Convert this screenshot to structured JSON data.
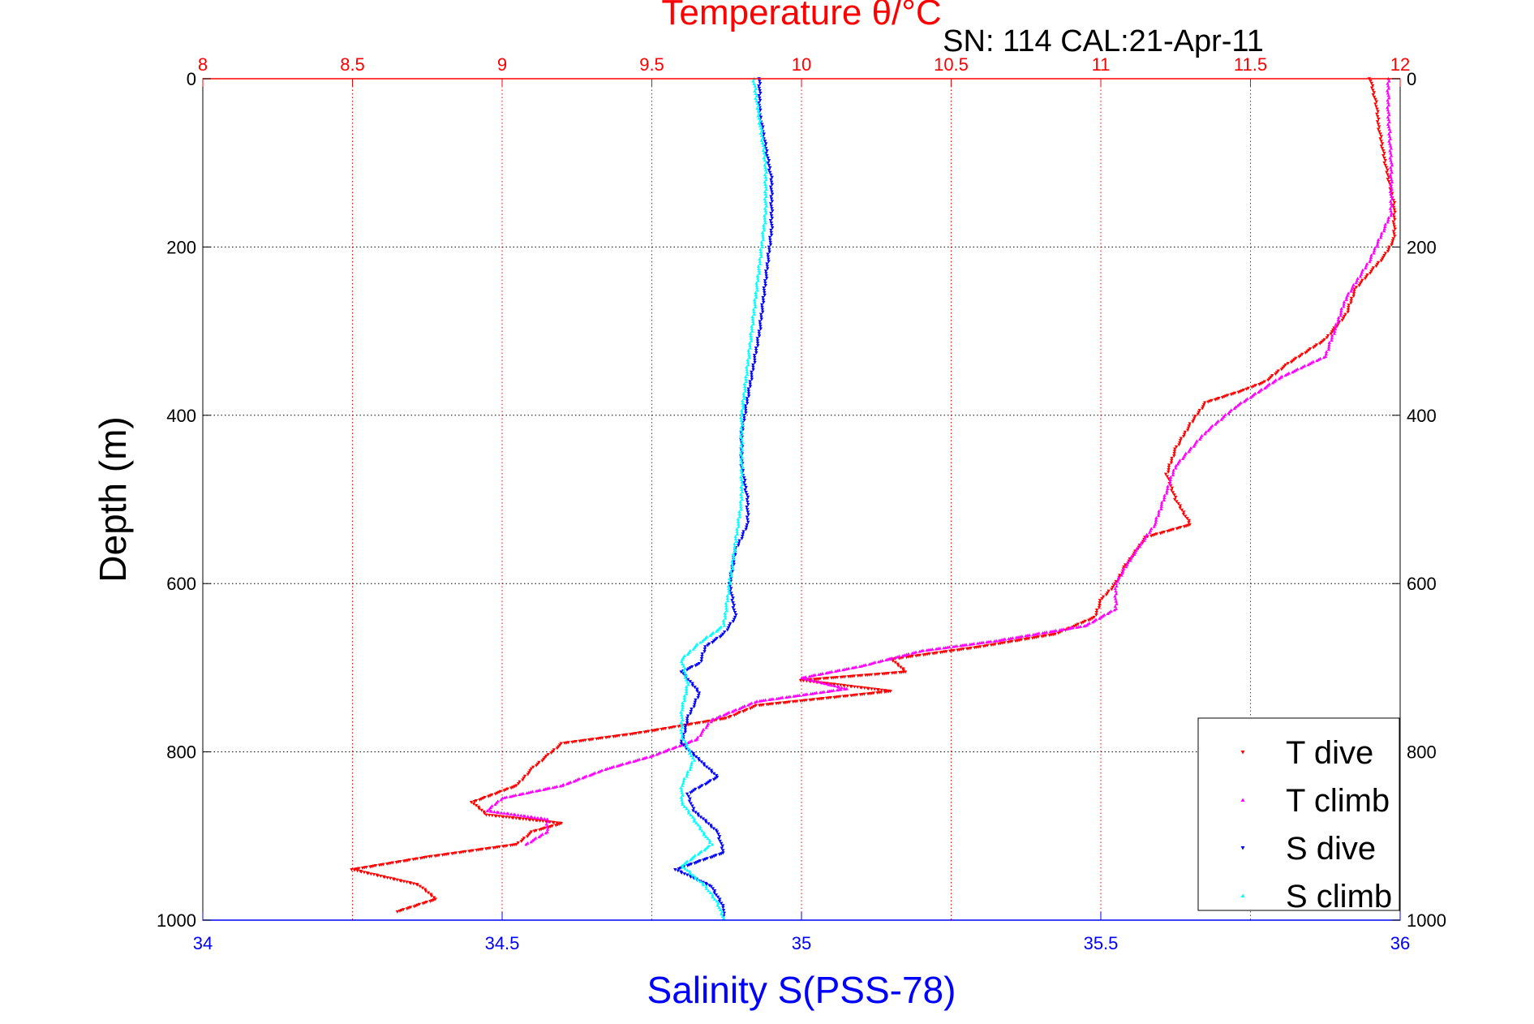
{
  "chart_data": {
    "type": "scatter",
    "title": "Temperature θ/°C",
    "subtitle": "SN: 114  CAL:21-Apr-11",
    "ylabel": "Depth (m)",
    "xlabel": "Salinity S(PSS-78)",
    "y_axis": {
      "lim": [
        0,
        1000
      ],
      "reversed": true,
      "ticks": [
        0,
        200,
        400,
        600,
        800,
        1000
      ],
      "labels_both_sides": true
    },
    "x_bottom": {
      "lim": [
        34,
        36
      ],
      "ticks": [
        34,
        34.5,
        35,
        35.5,
        36
      ],
      "tick_labels": [
        "34",
        "34.5",
        "35",
        "35.5",
        "36"
      ],
      "color": "#0000ff",
      "title_color": "#0000ff"
    },
    "x_top": {
      "lim": [
        8,
        12
      ],
      "ticks": [
        8,
        8.5,
        9,
        9.5,
        10,
        10.5,
        11,
        11.5,
        12
      ],
      "tick_labels": [
        "8",
        "8.5",
        "9",
        "9.5",
        "10",
        "10.5",
        "11",
        "11.5",
        "12"
      ],
      "color": "#ff0000",
      "title_color": "#ff0000"
    },
    "grid": {
      "vertical": "top-axis",
      "vertical_color": "#ff0000",
      "horizontal_color": "#000000",
      "style": "dotted"
    },
    "legend": {
      "placement": "bottom-right",
      "entries": [
        "T dive",
        "T climb",
        "S dive",
        "S climb"
      ]
    },
    "series": [
      {
        "name": "T dive",
        "axis": "top",
        "marker": "triangle-down",
        "color": "#ff0000",
        "points": [
          [
            11.9,
            0
          ],
          [
            11.92,
            30
          ],
          [
            11.93,
            60
          ],
          [
            11.95,
            100
          ],
          [
            11.98,
            150
          ],
          [
            11.98,
            190
          ],
          [
            11.95,
            210
          ],
          [
            11.85,
            250
          ],
          [
            11.82,
            280
          ],
          [
            11.75,
            310
          ],
          [
            11.62,
            340
          ],
          [
            11.55,
            360
          ],
          [
            11.48,
            370
          ],
          [
            11.35,
            385
          ],
          [
            11.3,
            410
          ],
          [
            11.25,
            440
          ],
          [
            11.22,
            470
          ],
          [
            11.25,
            500
          ],
          [
            11.3,
            530
          ],
          [
            11.15,
            545
          ],
          [
            11.08,
            580
          ],
          [
            11.05,
            600
          ],
          [
            11.0,
            620
          ],
          [
            10.98,
            640
          ],
          [
            10.85,
            660
          ],
          [
            10.6,
            675
          ],
          [
            10.3,
            690
          ],
          [
            10.35,
            705
          ],
          [
            10.0,
            715
          ],
          [
            10.3,
            728
          ],
          [
            9.85,
            745
          ],
          [
            9.75,
            760
          ],
          [
            9.45,
            778
          ],
          [
            9.2,
            790
          ],
          [
            9.15,
            805
          ],
          [
            9.1,
            820
          ],
          [
            9.05,
            840
          ],
          [
            8.9,
            860
          ],
          [
            8.95,
            875
          ],
          [
            9.2,
            885
          ],
          [
            9.1,
            895
          ],
          [
            9.05,
            910
          ],
          [
            8.75,
            925
          ],
          [
            8.5,
            940
          ],
          [
            8.72,
            958
          ],
          [
            8.78,
            975
          ],
          [
            8.65,
            990
          ]
        ]
      },
      {
        "name": "T climb",
        "axis": "top",
        "marker": "triangle-up",
        "color": "#ff00ff",
        "points": [
          [
            11.96,
            0
          ],
          [
            11.96,
            40
          ],
          [
            11.97,
            100
          ],
          [
            11.97,
            160
          ],
          [
            11.9,
            215
          ],
          [
            11.82,
            260
          ],
          [
            11.78,
            300
          ],
          [
            11.75,
            330
          ],
          [
            11.6,
            355
          ],
          [
            11.45,
            390
          ],
          [
            11.35,
            420
          ],
          [
            11.25,
            460
          ],
          [
            11.22,
            490
          ],
          [
            11.18,
            530
          ],
          [
            11.1,
            570
          ],
          [
            11.05,
            600
          ],
          [
            11.05,
            630
          ],
          [
            10.95,
            650
          ],
          [
            10.65,
            668
          ],
          [
            10.4,
            680
          ],
          [
            10.2,
            698
          ],
          [
            10.0,
            712
          ],
          [
            10.15,
            725
          ],
          [
            9.85,
            740
          ],
          [
            9.7,
            762
          ],
          [
            9.65,
            785
          ],
          [
            9.5,
            805
          ],
          [
            9.35,
            820
          ],
          [
            9.2,
            840
          ],
          [
            9.0,
            855
          ],
          [
            8.95,
            870
          ],
          [
            9.15,
            880
          ],
          [
            9.15,
            895
          ],
          [
            9.08,
            910
          ]
        ]
      },
      {
        "name": "S dive",
        "axis": "bottom",
        "marker": "triangle-down",
        "color": "#0000ff",
        "points": [
          [
            34.93,
            0
          ],
          [
            34.93,
            40
          ],
          [
            34.94,
            80
          ],
          [
            34.95,
            120
          ],
          [
            34.95,
            180
          ],
          [
            34.94,
            240
          ],
          [
            34.93,
            300
          ],
          [
            34.92,
            340
          ],
          [
            34.91,
            380
          ],
          [
            34.9,
            420
          ],
          [
            34.9,
            460
          ],
          [
            34.91,
            500
          ],
          [
            34.91,
            530
          ],
          [
            34.89,
            560
          ],
          [
            34.88,
            600
          ],
          [
            34.89,
            640
          ],
          [
            34.87,
            660
          ],
          [
            34.84,
            675
          ],
          [
            34.83,
            695
          ],
          [
            34.8,
            705
          ],
          [
            34.83,
            730
          ],
          [
            34.81,
            760
          ],
          [
            34.8,
            790
          ],
          [
            34.83,
            810
          ],
          [
            34.86,
            830
          ],
          [
            34.81,
            850
          ],
          [
            34.82,
            870
          ],
          [
            34.86,
            895
          ],
          [
            34.87,
            920
          ],
          [
            34.79,
            940
          ],
          [
            34.85,
            960
          ],
          [
            34.87,
            985
          ],
          [
            34.87,
            995
          ]
        ]
      },
      {
        "name": "S climb",
        "axis": "bottom",
        "marker": "triangle-up",
        "color": "#00ffff",
        "points": [
          [
            34.92,
            0
          ],
          [
            34.93,
            50
          ],
          [
            34.94,
            100
          ],
          [
            34.94,
            160
          ],
          [
            34.93,
            220
          ],
          [
            34.92,
            280
          ],
          [
            34.91,
            340
          ],
          [
            34.9,
            400
          ],
          [
            34.9,
            450
          ],
          [
            34.9,
            500
          ],
          [
            34.89,
            550
          ],
          [
            34.88,
            600
          ],
          [
            34.87,
            650
          ],
          [
            34.83,
            670
          ],
          [
            34.8,
            690
          ],
          [
            34.81,
            720
          ],
          [
            34.8,
            750
          ],
          [
            34.8,
            780
          ],
          [
            34.82,
            810
          ],
          [
            34.8,
            840
          ],
          [
            34.8,
            860
          ],
          [
            34.82,
            880
          ],
          [
            34.85,
            910
          ],
          [
            34.8,
            935
          ],
          [
            34.84,
            960
          ],
          [
            34.86,
            980
          ],
          [
            34.87,
            998
          ]
        ]
      }
    ]
  }
}
